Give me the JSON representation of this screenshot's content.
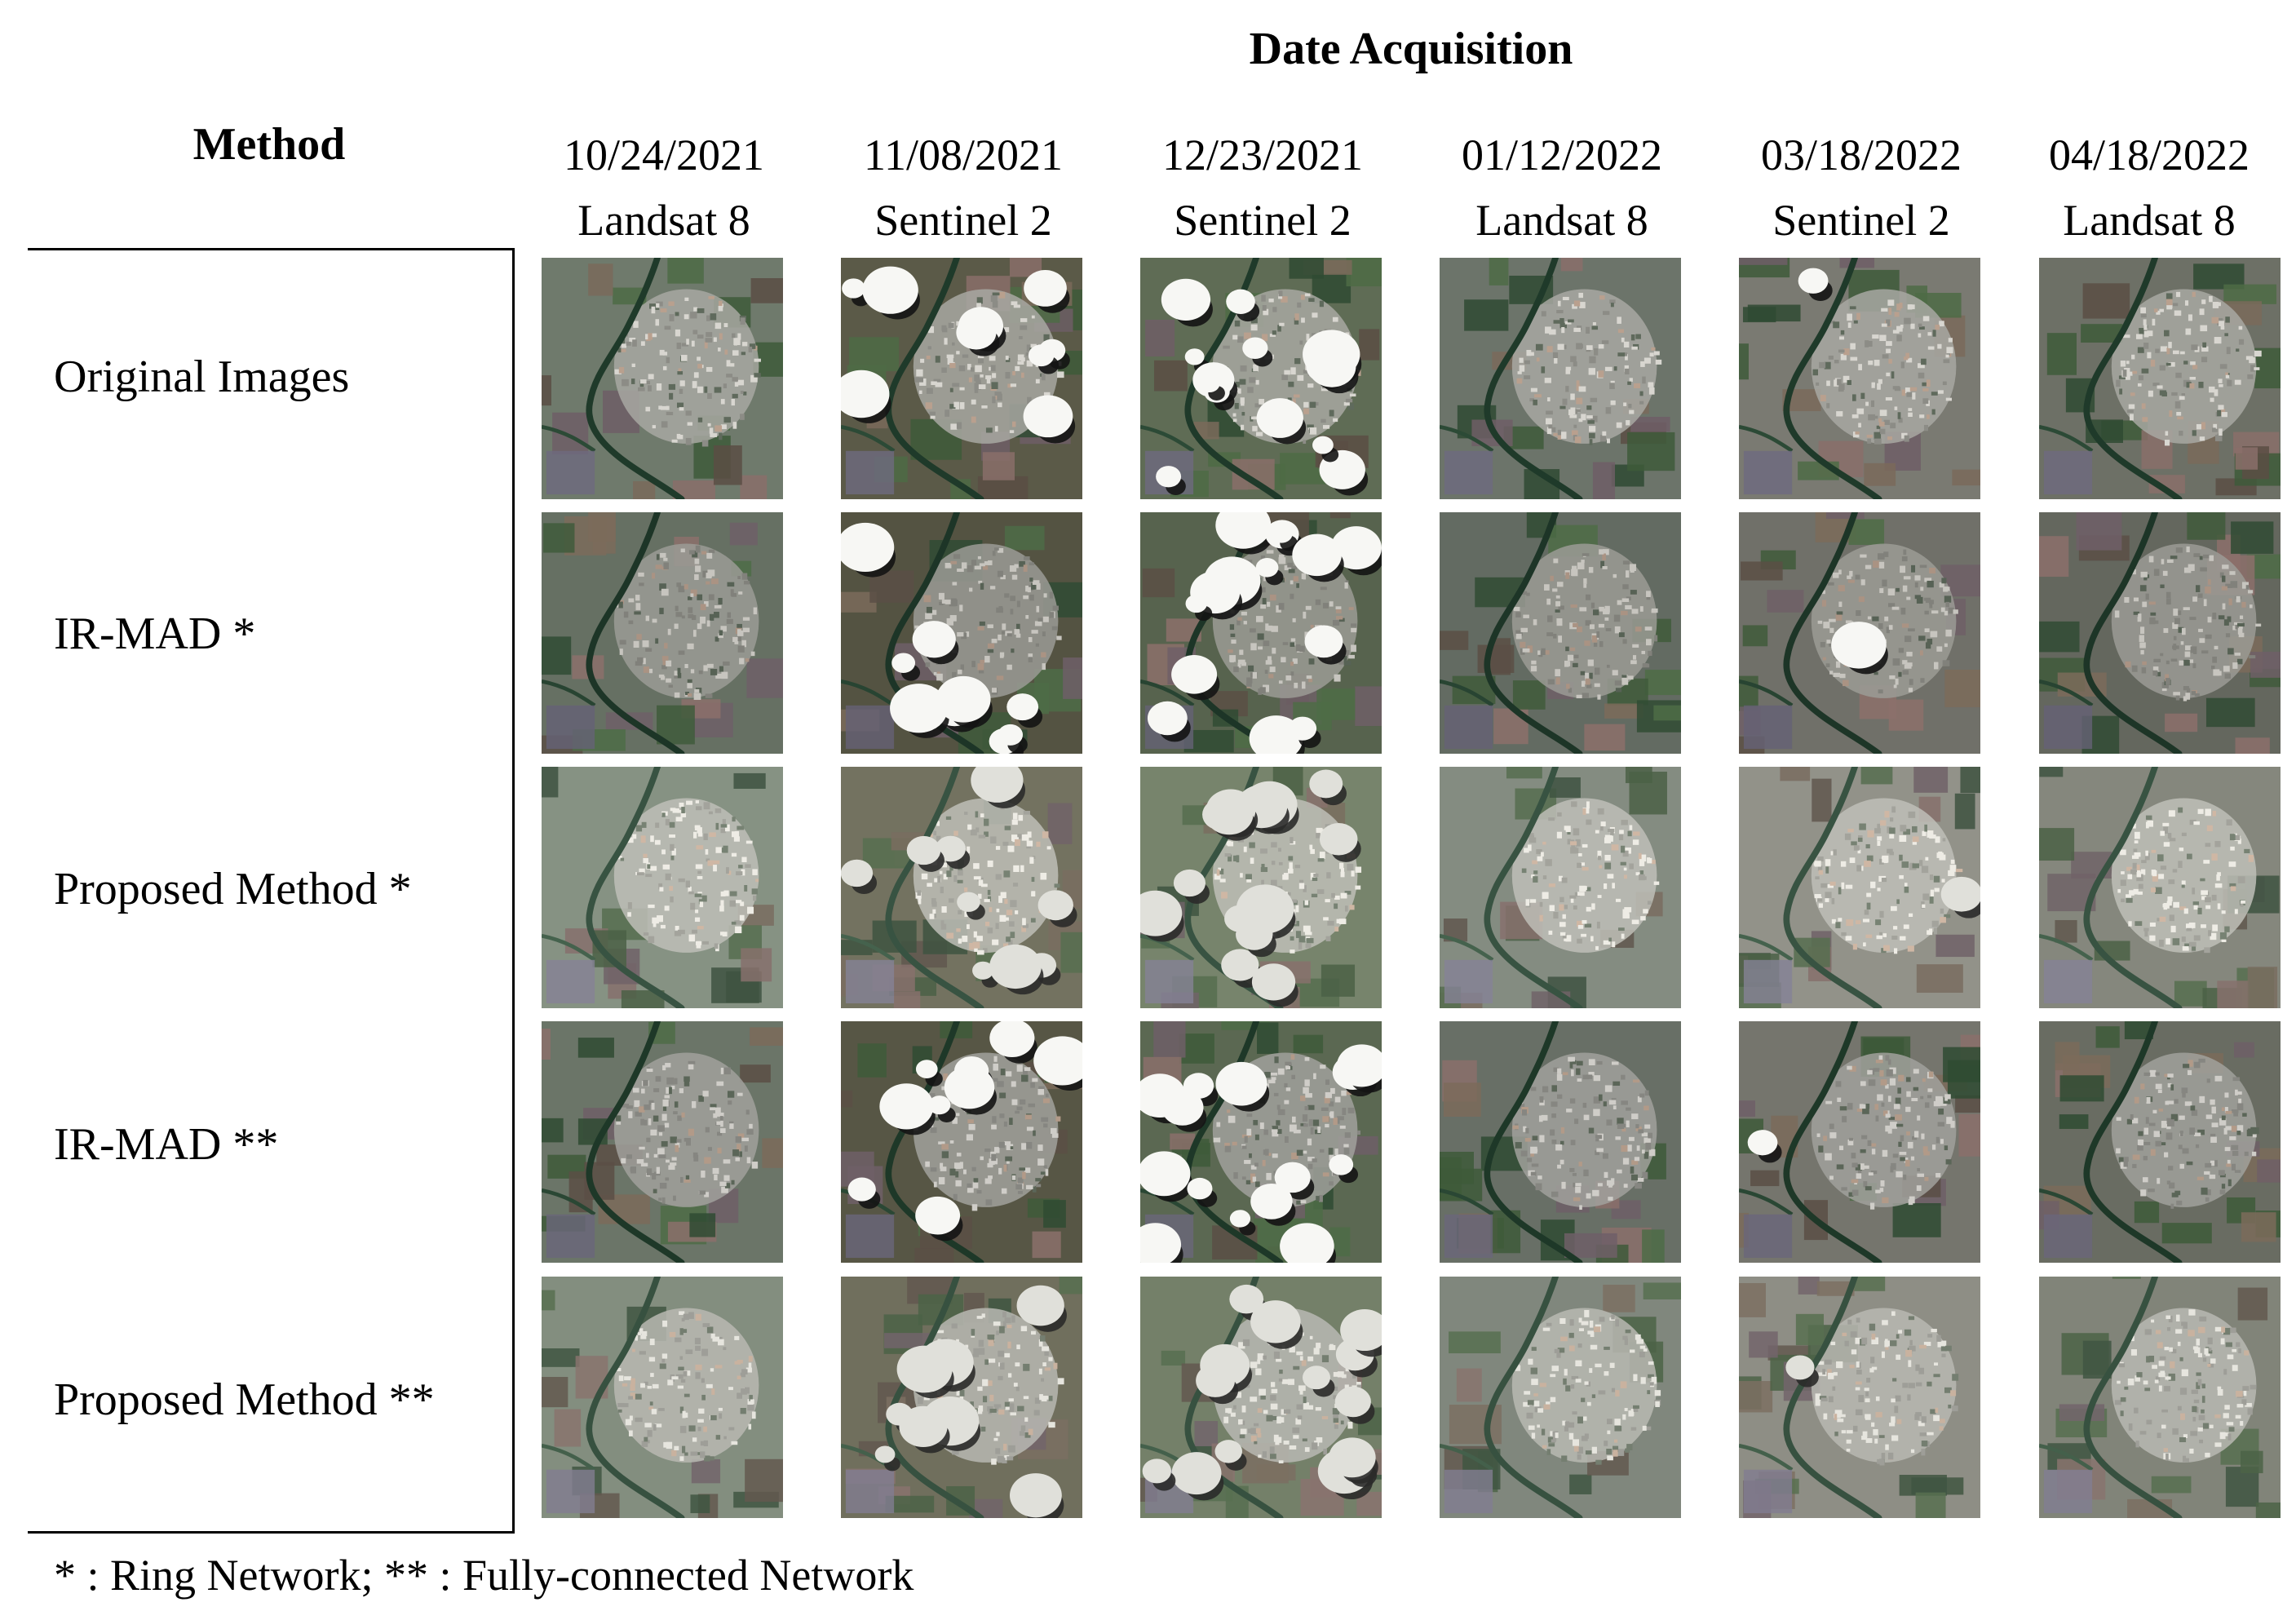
{
  "header": {
    "title": "Date Acquisition",
    "method_label": "Method"
  },
  "columns": [
    {
      "date": "10/24/2021",
      "sensor": "Landsat 8"
    },
    {
      "date": "11/08/2021",
      "sensor": "Sentinel 2"
    },
    {
      "date": "12/23/2021",
      "sensor": "Sentinel 2"
    },
    {
      "date": "01/12/2022",
      "sensor": "Landsat 8"
    },
    {
      "date": "03/18/2022",
      "sensor": "Sentinel 2"
    },
    {
      "date": "04/18/2022",
      "sensor": "Landsat 8"
    }
  ],
  "rows": [
    {
      "label": "Original Images"
    },
    {
      "label": "IR-MAD *"
    },
    {
      "label": "Proposed Method *"
    },
    {
      "label": "IR-MAD **"
    },
    {
      "label": "Proposed Method **"
    }
  ],
  "footnote": "* : Ring Network; ** : Fully-connected Network"
}
